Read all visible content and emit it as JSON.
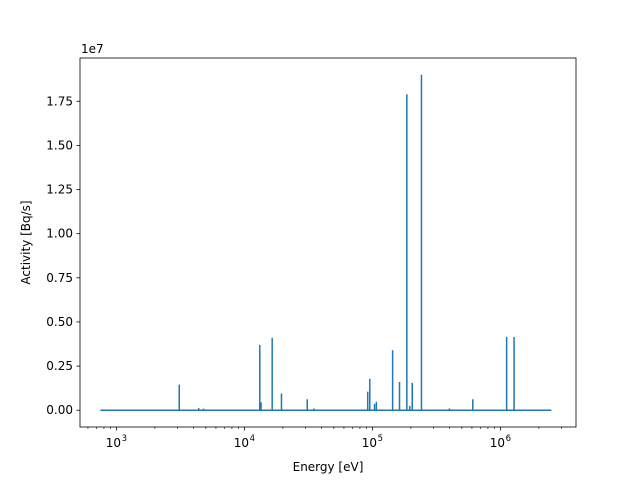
{
  "chart_data": {
    "type": "line",
    "title": "",
    "xlabel": "Energy [eV]",
    "ylabel": "Activity [Bq/s]",
    "xscale": "log",
    "xlim": [
      520,
      3900000
    ],
    "ylim": [
      -950000,
      19950000
    ],
    "y_multiplier_label": "1e7",
    "x_ticks": [
      {
        "value": 1000,
        "base": "10",
        "exp": "3"
      },
      {
        "value": 10000,
        "base": "10",
        "exp": "4"
      },
      {
        "value": 100000,
        "base": "10",
        "exp": "5"
      },
      {
        "value": 1000000,
        "base": "10",
        "exp": "6"
      }
    ],
    "y_ticks": [
      {
        "value": 0,
        "label": "0.00"
      },
      {
        "value": 2500000,
        "label": "0.25"
      },
      {
        "value": 5000000,
        "label": "0.50"
      },
      {
        "value": 7500000,
        "label": "0.75"
      },
      {
        "value": 10000000,
        "label": "1.00"
      },
      {
        "value": 12500000,
        "label": "1.25"
      },
      {
        "value": 15000000,
        "label": "1.50"
      },
      {
        "value": 17500000,
        "label": "1.75"
      }
    ],
    "grid": false,
    "line_color": "#1f77b4",
    "baseline_range": [
      750,
      2500000
    ],
    "series": [
      {
        "peaks": [
          {
            "x": 3100,
            "y": 1450000
          },
          {
            "x": 4400,
            "y": 120000
          },
          {
            "x": 4800,
            "y": 90000
          },
          {
            "x": 13200,
            "y": 3700000
          },
          {
            "x": 13500,
            "y": 450000
          },
          {
            "x": 16500,
            "y": 4100000
          },
          {
            "x": 19500,
            "y": 950000
          },
          {
            "x": 31000,
            "y": 620000
          },
          {
            "x": 35000,
            "y": 100000
          },
          {
            "x": 92000,
            "y": 1050000
          },
          {
            "x": 95500,
            "y": 1780000
          },
          {
            "x": 104000,
            "y": 350000
          },
          {
            "x": 107500,
            "y": 480000
          },
          {
            "x": 144000,
            "y": 3400000
          },
          {
            "x": 163000,
            "y": 1600000
          },
          {
            "x": 186000,
            "y": 17900000
          },
          {
            "x": 196000,
            "y": 250000
          },
          {
            "x": 205000,
            "y": 1550000
          },
          {
            "x": 242000,
            "y": 19000000
          },
          {
            "x": 400000,
            "y": 100000
          },
          {
            "x": 609000,
            "y": 620000
          },
          {
            "x": 1120000,
            "y": 4150000
          },
          {
            "x": 1280000,
            "y": 4150000
          }
        ]
      }
    ]
  }
}
